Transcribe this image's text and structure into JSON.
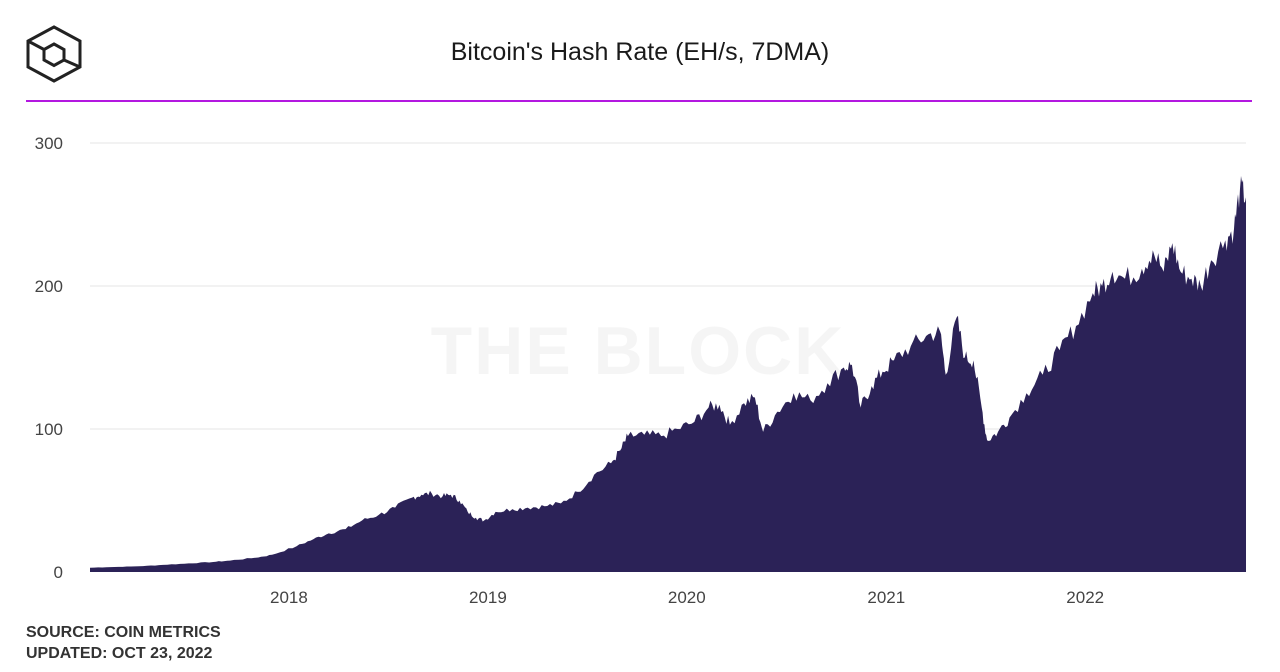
{
  "brand": {
    "logo": "the-block-cube-logo",
    "watermark": "THE BLOCK",
    "accent": "#b318e0"
  },
  "header": {
    "title": "Bitcoin's Hash Rate (EH/s, 7DMA)"
  },
  "footer": {
    "source": "SOURCE: COIN METRICS",
    "updated": "UPDATED: OCT 23, 2022"
  },
  "chart_data": {
    "type": "area",
    "title": "Bitcoin's Hash Rate (EH/s, 7DMA)",
    "xlabel": "",
    "ylabel": "",
    "ylim": [
      0,
      300
    ],
    "yticks": [
      0,
      100,
      200,
      300
    ],
    "ytick_labels": [
      "0",
      "100",
      "200",
      "300"
    ],
    "xlim": [
      "2017-01-01",
      "2022-10-23"
    ],
    "xticks": [
      {
        "date": "2018-01-01",
        "label": "2018"
      },
      {
        "date": "2019-01-01",
        "label": "2019"
      },
      {
        "date": "2020-01-01",
        "label": "2020"
      },
      {
        "date": "2021-01-01",
        "label": "2021"
      },
      {
        "date": "2022-01-01",
        "label": "2022"
      }
    ],
    "grid": true,
    "legend": "none",
    "color": "#2b2257",
    "series": [
      {
        "name": "",
        "points": [
          [
            "2017-01-01",
            3
          ],
          [
            "2017-02-15",
            3.5
          ],
          [
            "2017-04-01",
            4
          ],
          [
            "2017-05-15",
            5
          ],
          [
            "2017-07-01",
            6
          ],
          [
            "2017-08-15",
            7
          ],
          [
            "2017-09-15",
            8
          ],
          [
            "2017-11-01",
            10
          ],
          [
            "2017-12-01",
            12
          ],
          [
            "2018-01-15",
            18
          ],
          [
            "2018-02-15",
            23
          ],
          [
            "2018-03-15",
            27
          ],
          [
            "2018-04-15",
            30
          ],
          [
            "2018-05-15",
            36
          ],
          [
            "2018-06-15",
            40
          ],
          [
            "2018-07-15",
            45
          ],
          [
            "2018-08-15",
            52
          ],
          [
            "2018-09-01",
            54
          ],
          [
            "2018-09-20",
            55
          ],
          [
            "2018-10-10",
            53
          ],
          [
            "2018-10-25",
            54
          ],
          [
            "2018-11-10",
            50
          ],
          [
            "2018-11-25",
            42
          ],
          [
            "2018-12-10",
            38
          ],
          [
            "2018-12-25",
            36
          ],
          [
            "2019-01-15",
            42
          ],
          [
            "2019-02-15",
            44
          ],
          [
            "2019-03-15",
            45
          ],
          [
            "2019-04-15",
            46
          ],
          [
            "2019-05-15",
            48
          ],
          [
            "2019-06-15",
            56
          ],
          [
            "2019-07-15",
            68
          ],
          [
            "2019-08-15",
            76
          ],
          [
            "2019-09-01",
            85
          ],
          [
            "2019-09-15",
            95
          ],
          [
            "2019-10-15",
            96
          ],
          [
            "2019-11-15",
            95
          ],
          [
            "2019-12-15",
            100
          ],
          [
            "2020-01-15",
            105
          ],
          [
            "2020-02-10",
            115
          ],
          [
            "2020-03-01",
            117
          ],
          [
            "2020-03-20",
            103
          ],
          [
            "2020-04-15",
            118
          ],
          [
            "2020-05-05",
            122
          ],
          [
            "2020-05-20",
            98
          ],
          [
            "2020-06-15",
            112
          ],
          [
            "2020-07-15",
            125
          ],
          [
            "2020-08-15",
            120
          ],
          [
            "2020-09-15",
            132
          ],
          [
            "2020-10-15",
            143
          ],
          [
            "2020-10-30",
            145
          ],
          [
            "2020-11-15",
            115
          ],
          [
            "2020-12-05",
            130
          ],
          [
            "2020-12-25",
            140
          ],
          [
            "2021-01-15",
            148
          ],
          [
            "2021-02-15",
            158
          ],
          [
            "2021-03-15",
            165
          ],
          [
            "2021-04-10",
            168
          ],
          [
            "2021-04-20",
            138
          ],
          [
            "2021-05-10",
            178
          ],
          [
            "2021-05-25",
            150
          ],
          [
            "2021-06-10",
            148
          ],
          [
            "2021-06-25",
            115
          ],
          [
            "2021-07-05",
            92
          ],
          [
            "2021-07-25",
            98
          ],
          [
            "2021-08-15",
            108
          ],
          [
            "2021-09-15",
            125
          ],
          [
            "2021-10-15",
            138
          ],
          [
            "2021-11-15",
            155
          ],
          [
            "2021-12-15",
            172
          ],
          [
            "2022-01-15",
            195
          ],
          [
            "2022-02-01",
            200
          ],
          [
            "2022-02-20",
            210
          ],
          [
            "2022-03-15",
            205
          ],
          [
            "2022-04-15",
            212
          ],
          [
            "2022-05-05",
            225
          ],
          [
            "2022-05-25",
            210
          ],
          [
            "2022-06-10",
            230
          ],
          [
            "2022-06-25",
            210
          ],
          [
            "2022-07-15",
            205
          ],
          [
            "2022-08-01",
            200
          ],
          [
            "2022-08-20",
            218
          ],
          [
            "2022-09-15",
            232
          ],
          [
            "2022-10-01",
            240
          ],
          [
            "2022-10-12",
            268
          ],
          [
            "2022-10-23",
            262
          ]
        ]
      }
    ]
  }
}
